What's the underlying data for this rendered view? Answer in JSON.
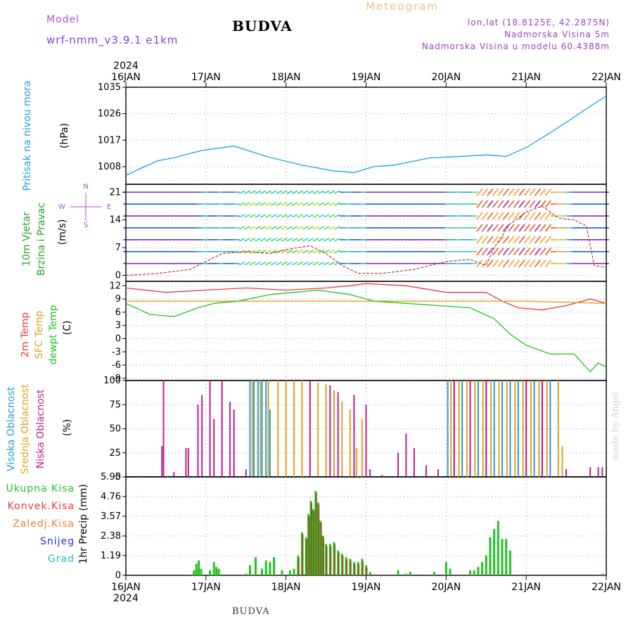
{
  "header": {
    "model_label": "Model",
    "model_version": "wrf-nmm_v3.9.1 e1km",
    "title": "BUDVA",
    "chart_kind": "Meteogram",
    "location": "lon,lat (18.8125E, 42.2875N)",
    "altitude": "Nadmorska Visina 5m",
    "model_altitude": "Nadmorska Visina u modelu 60.4388m"
  },
  "footer": {
    "station": "BUDVA",
    "credit": "made by Angel"
  },
  "colors": {
    "pressure": "#1ea0e6",
    "t2m": "#e83c3c",
    "tsfc": "#e0a020",
    "dewpt": "#22c422",
    "cloud_high": "#2a9ad8",
    "cloud_mid": "#e0a020",
    "cloud_low": "#c0208a",
    "precip_total": "#22c422",
    "precip_conv": "#e83c3c",
    "precip_frozen": "#f08030",
    "snow": "#3030e0",
    "graupel": "#20c0c0",
    "wind_label": "#22a822",
    "wind_icon": "#b050d0"
  },
  "chart_data": {
    "type": "line",
    "time_axis": {
      "year": "2024",
      "ticks": [
        "16JAN",
        "17JAN",
        "18JAN",
        "19JAN",
        "20JAN",
        "21JAN",
        "22JAN"
      ],
      "range_days": [
        0,
        6
      ]
    },
    "panels": {
      "pressure": {
        "ylabel_lines": [
          "Pritisak na nivou mora",
          "(hPa)"
        ],
        "yticks": [
          "1008",
          "1017",
          "1026",
          "1035"
        ],
        "ylim": [
          1002,
          1035
        ],
        "series": [
          {
            "name": "Pritisak na nivou mora",
            "x": [
              0,
              0.15,
              0.4,
              0.6,
              0.95,
              1.35,
              1.75,
              2.2,
              2.6,
              2.85,
              3.1,
              3.35,
              3.8,
              4.2,
              4.5,
              4.75,
              5.0,
              5.3,
              5.55,
              5.8,
              6.0
            ],
            "y": [
              1005,
              1007,
              1010,
              1011,
              1013.5,
              1015,
              1011.5,
              1008.5,
              1006.5,
              1006,
              1008,
              1008.5,
              1011,
              1011.5,
              1012,
              1011.5,
              1014.5,
              1019.5,
              1024,
              1028.5,
              1032
            ]
          }
        ]
      },
      "wind": {
        "ylabel_lines": [
          "10m Vjetar",
          "Brzina i Pravac",
          "(m/s)"
        ],
        "compass": [
          "N",
          "W",
          "E",
          "S"
        ],
        "yticks": [
          "0",
          "7",
          "14",
          "21"
        ],
        "ylim": [
          -1.5,
          23
        ],
        "regime_colors": [
          "#7a28c8",
          "#1f5ae0",
          "#1fa0e0",
          "#2ad0c8",
          "#5ad040",
          "#c0d030",
          "#f0a030",
          "#f05030"
        ],
        "series": [
          {
            "name": "10m Vjetar",
            "x": [
              0,
              0.4,
              0.8,
              1.0,
              1.2,
              1.5,
              1.8,
              2.0,
              2.3,
              2.5,
              2.7,
              2.9,
              3.2,
              3.6,
              4.0,
              4.3,
              4.5,
              4.6,
              4.8,
              5.0,
              5.2,
              5.4,
              5.6,
              5.75,
              5.85,
              6.0
            ],
            "y": [
              0,
              0.5,
              1.5,
              3.5,
              5.5,
              6,
              5.5,
              6.5,
              7.5,
              5.5,
              2.5,
              0.5,
              0.5,
              1.5,
              3.5,
              4,
              2.5,
              7,
              13,
              16,
              17.5,
              14.5,
              14,
              12.5,
              2.5,
              2
            ]
          }
        ]
      },
      "temperature": {
        "ylabel_lines": [
          "2m Temp",
          "SFC Temp",
          "dewpt Temp",
          "(C)"
        ],
        "yticks": [
          "-9",
          "-6",
          "-3",
          "0",
          "3",
          "6",
          "9",
          "12"
        ],
        "ylim": [
          -9.5,
          13
        ],
        "series": [
          {
            "name": "2m Temp",
            "x": [
              0,
              0.5,
              1.0,
              1.5,
              2.0,
              2.5,
              2.8,
              3.0,
              3.5,
              4.0,
              4.5,
              4.7,
              4.9,
              5.2,
              5.5,
              5.8,
              6.0
            ],
            "y": [
              11.5,
              10.5,
              11,
              11.5,
              11,
              11.5,
              12,
              12.5,
              12,
              10.5,
              10.5,
              8.5,
              7,
              6.5,
              7.5,
              9,
              8
            ]
          },
          {
            "name": "SFC Temp",
            "x": [
              0,
              1,
              2,
              3,
              4,
              5,
              6
            ],
            "y": [
              8.5,
              8.5,
              8.5,
              8.5,
              8.5,
              8.5,
              8
            ]
          },
          {
            "name": "dewpt Temp",
            "x": [
              0,
              0.3,
              0.6,
              0.9,
              1.1,
              1.4,
              1.8,
              2.1,
              2.4,
              2.8,
              3.1,
              3.5,
              3.9,
              4.3,
              4.6,
              4.8,
              5.0,
              5.3,
              5.6,
              5.8,
              5.9,
              6.0
            ],
            "y": [
              8,
              5.5,
              5,
              7,
              8,
              8.5,
              10,
              10.5,
              11,
              10,
              8.5,
              8,
              7.5,
              7,
              4.5,
              1,
              -1.5,
              -3.5,
              -3.5,
              -7.5,
              -5.5,
              -6.5
            ]
          }
        ]
      },
      "clouds": {
        "ylabel_lines": [
          "Visoka Oblacnost",
          "Srednja Oblacnost",
          "Niska Oblacnost",
          "(%)"
        ],
        "yticks": [
          "0",
          "25",
          "50",
          "75",
          "100"
        ],
        "ylim": [
          0,
          100
        ],
        "series": [
          {
            "name": "Visoka Oblacnost",
            "bars": [
              [
                1.55,
                100
              ],
              [
                1.6,
                100
              ],
              [
                1.65,
                100
              ],
              [
                1.7,
                100
              ],
              [
                1.75,
                100
              ],
              [
                1.8,
                70
              ],
              [
                4.02,
                100
              ],
              [
                4.1,
                100
              ],
              [
                4.2,
                100
              ],
              [
                4.3,
                100
              ],
              [
                4.4,
                100
              ],
              [
                4.5,
                100
              ],
              [
                4.6,
                100
              ],
              [
                4.7,
                100
              ],
              [
                4.8,
                100
              ],
              [
                4.9,
                100
              ],
              [
                5.0,
                100
              ],
              [
                5.1,
                100
              ],
              [
                5.2,
                100
              ],
              [
                5.3,
                100
              ]
            ]
          },
          {
            "name": "Srednja Oblacnost",
            "bars": [
              [
                1.58,
                100
              ],
              [
                1.68,
                100
              ],
              [
                1.78,
                100
              ],
              [
                1.9,
                100
              ],
              [
                2.0,
                100
              ],
              [
                2.1,
                100
              ],
              [
                2.2,
                100
              ],
              [
                2.3,
                100
              ],
              [
                2.4,
                98
              ],
              [
                2.5,
                96
              ],
              [
                2.6,
                90
              ],
              [
                2.7,
                78
              ],
              [
                2.8,
                70
              ],
              [
                2.88,
                30
              ],
              [
                2.95,
                60
              ],
              [
                4.06,
                100
              ],
              [
                4.16,
                100
              ],
              [
                4.26,
                100
              ],
              [
                4.36,
                100
              ],
              [
                4.46,
                100
              ],
              [
                4.56,
                100
              ],
              [
                4.66,
                100
              ],
              [
                4.76,
                100
              ],
              [
                4.86,
                100
              ],
              [
                4.96,
                100
              ],
              [
                5.06,
                100
              ],
              [
                5.16,
                100
              ],
              [
                5.26,
                100
              ],
              [
                5.4,
                100
              ],
              [
                5.45,
                32
              ]
            ]
          },
          {
            "name": "Niska Oblacnost",
            "bars": [
              [
                0.45,
                32
              ],
              [
                0.47,
                100
              ],
              [
                0.6,
                5
              ],
              [
                0.75,
                30
              ],
              [
                0.78,
                30
              ],
              [
                0.9,
                75
              ],
              [
                0.95,
                85
              ],
              [
                1.05,
                100
              ],
              [
                1.1,
                60
              ],
              [
                1.2,
                100
              ],
              [
                1.3,
                78
              ],
              [
                1.35,
                70
              ],
              [
                1.5,
                8
              ],
              [
                2.3,
                100
              ],
              [
                2.55,
                95
              ],
              [
                2.65,
                88
              ],
              [
                2.85,
                85
              ],
              [
                3.0,
                75
              ],
              [
                3.05,
                8
              ],
              [
                3.2,
                2
              ],
              [
                3.4,
                25
              ],
              [
                3.5,
                45
              ],
              [
                3.6,
                30
              ],
              [
                3.75,
                12
              ],
              [
                3.9,
                8
              ],
              [
                4.1,
                100
              ],
              [
                4.3,
                100
              ],
              [
                4.5,
                100
              ],
              [
                5.0,
                100
              ],
              [
                5.2,
                100
              ],
              [
                5.5,
                8
              ],
              [
                5.8,
                10
              ],
              [
                5.9,
                10
              ],
              [
                5.95,
                10
              ]
            ]
          }
        ]
      },
      "precip": {
        "ylabel_lines": [
          "1hr Precip (mm)"
        ],
        "legend": [
          "Ukupna Kisa",
          "Konvek.Kisa",
          "Zaledj.Kisa",
          "Snijeg",
          "Grad"
        ],
        "yticks": [
          "0",
          "1.19",
          "2.38",
          "3.57",
          "4.76",
          "5.95"
        ],
        "ylim": [
          0,
          5.95
        ],
        "series": [
          {
            "name": "Ukupna Kisa",
            "x": [
              0.85,
              0.88,
              0.91,
              0.94,
              1.05,
              1.1,
              1.13,
              1.16,
              1.5,
              1.55,
              1.62,
              1.7,
              1.75,
              1.8,
              1.85,
              1.95,
              2.05,
              2.1,
              2.15,
              2.2,
              2.25,
              2.28,
              2.31,
              2.34,
              2.37,
              2.4,
              2.43,
              2.46,
              2.5,
              2.55,
              2.6,
              2.65,
              2.7,
              2.75,
              2.8,
              2.85,
              2.9,
              2.95,
              3.0,
              3.05,
              3.4,
              3.5,
              3.55,
              3.85,
              4.0,
              4.05,
              4.3,
              4.35,
              4.4,
              4.45,
              4.5,
              4.55,
              4.6,
              4.65,
              4.7,
              4.75,
              4.8,
              5.95
            ],
            "y": [
              0.3,
              0.7,
              0.9,
              0.4,
              0.3,
              0.8,
              0.5,
              0.4,
              0.1,
              0.6,
              1.1,
              0.4,
              0.9,
              0.8,
              1.1,
              0.3,
              0.3,
              0.4,
              1.2,
              2.6,
              2.3,
              3.7,
              4.5,
              4.0,
              5.1,
              4.4,
              3.3,
              2.4,
              1.9,
              1.9,
              2.0,
              1.5,
              1.3,
              1.1,
              1.0,
              0.8,
              0.8,
              1.0,
              0.6,
              0.2,
              0.3,
              0.1,
              0.2,
              0.2,
              0.8,
              0.4,
              0.3,
              0.3,
              0.5,
              0.8,
              1.2,
              2.3,
              2.8,
              3.3,
              2.2,
              2.2,
              1.5,
              0.1
            ]
          }
        ]
      }
    }
  }
}
